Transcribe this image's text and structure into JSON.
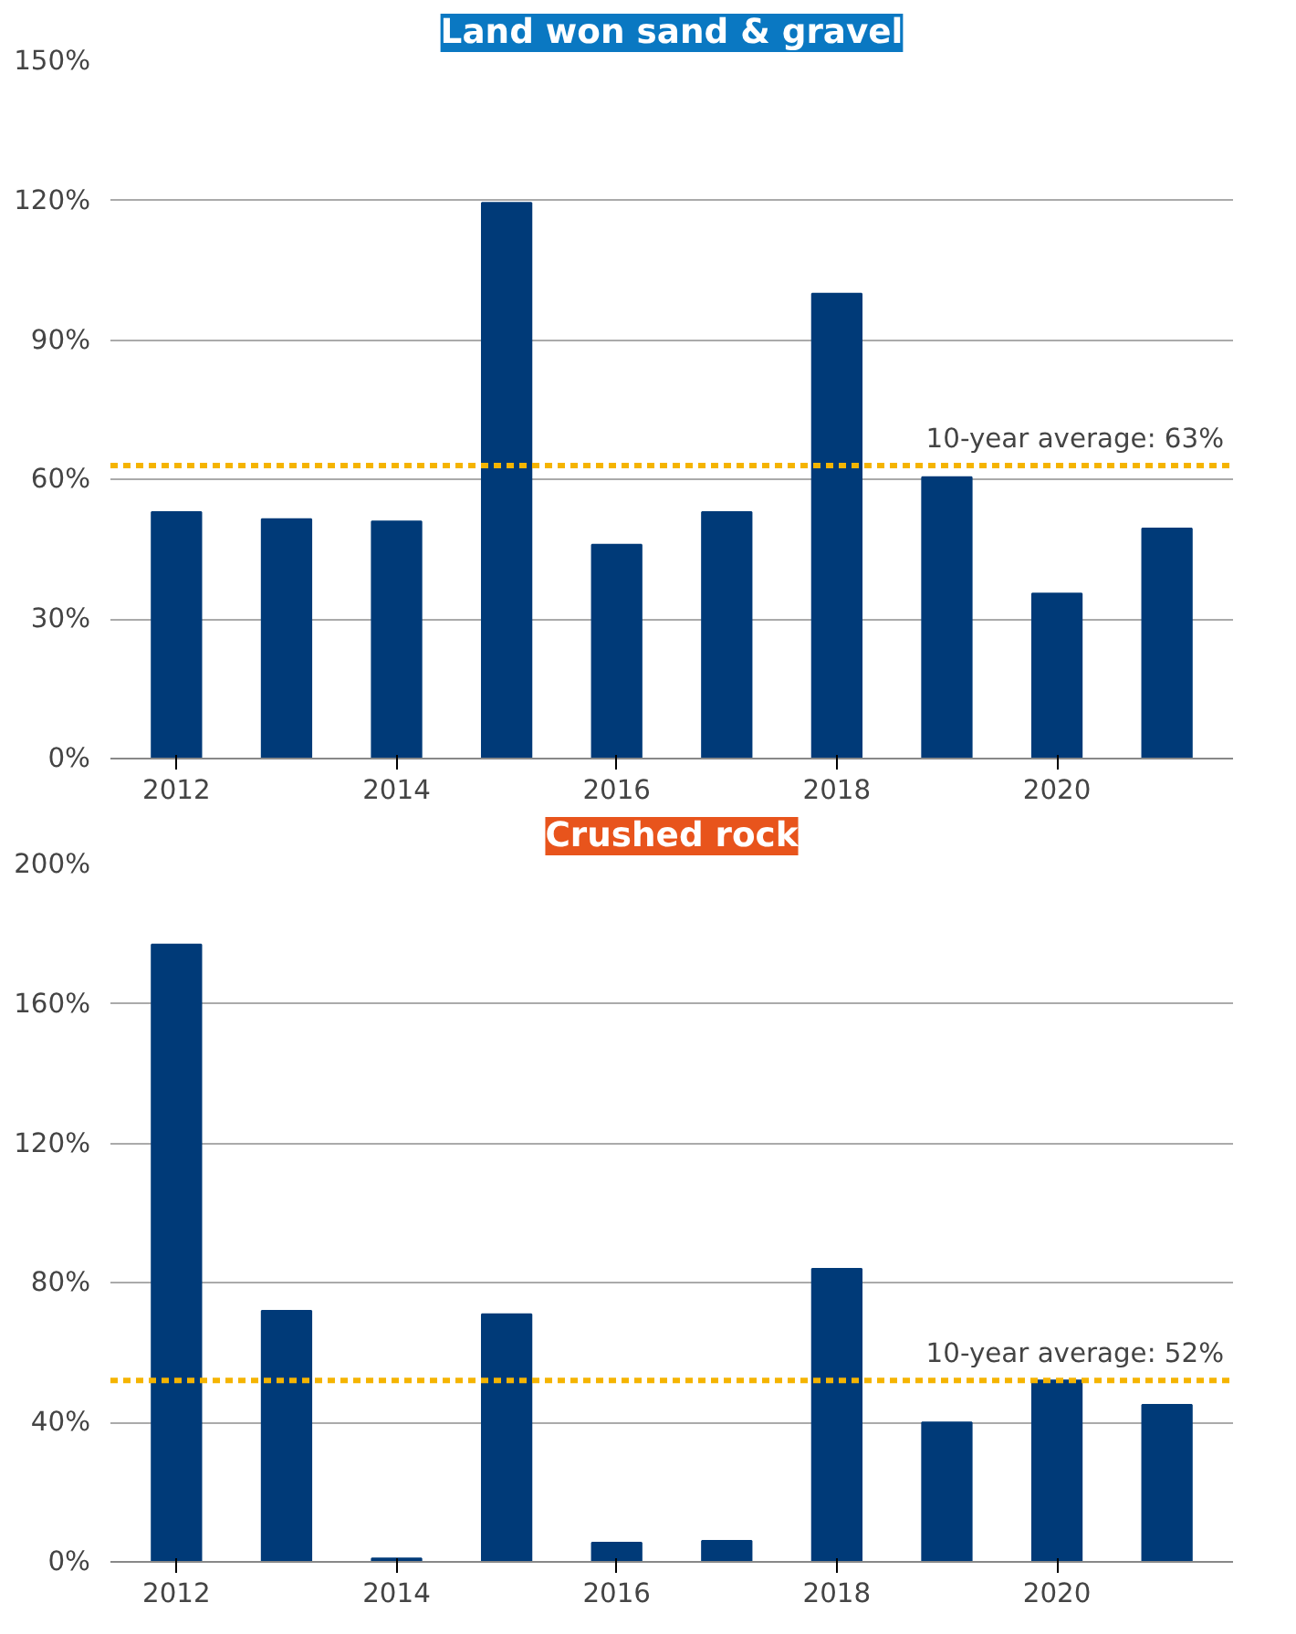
{
  "chart_data": [
    {
      "type": "bar",
      "title": "Land won sand & gravel",
      "x": [
        2012,
        2013,
        2014,
        2015,
        2016,
        2017,
        2018,
        2019,
        2020,
        2021
      ],
      "series": [
        {
          "color": "#003a78",
          "values": [
            53,
            51.5,
            51,
            119.5,
            46,
            53,
            100,
            60.5,
            35.5,
            49.5
          ]
        }
      ],
      "xlim": [
        2011.4,
        2021.6
      ],
      "xticks": [
        2012,
        2014,
        2016,
        2018,
        2020
      ],
      "ylim": [
        0,
        150
      ],
      "yticks": [
        {
          "value": 0,
          "label": "0%"
        },
        {
          "value": 30,
          "label": "30%"
        },
        {
          "value": 60,
          "label": "60%"
        },
        {
          "value": 90,
          "label": "90%"
        },
        {
          "value": 120,
          "label": "120%"
        },
        {
          "value": 150,
          "label": "150%"
        }
      ],
      "grid": "y",
      "ref_lines": [
        {
          "axis": "y",
          "value": 63,
          "label": "10-year average: 63%",
          "color": "#f5b400",
          "line_style": "dashed"
        }
      ]
    },
    {
      "type": "bar",
      "title": "Crushed rock",
      "x": [
        2012,
        2013,
        2014,
        2015,
        2016,
        2017,
        2018,
        2019,
        2020,
        2021
      ],
      "series": [
        {
          "color": "#003a78",
          "values": [
            177,
            72,
            1,
            71,
            5.5,
            6,
            84,
            40,
            52,
            45
          ]
        }
      ],
      "xlim": [
        2011.4,
        2021.6
      ],
      "xticks": [
        2012,
        2014,
        2016,
        2018,
        2020
      ],
      "ylim": [
        0,
        200
      ],
      "yticks": [
        {
          "value": 0,
          "label": "0%"
        },
        {
          "value": 40,
          "label": "40%"
        },
        {
          "value": 80,
          "label": "80%"
        },
        {
          "value": 120,
          "label": "120%"
        },
        {
          "value": 160,
          "label": "160%"
        },
        {
          "value": 200,
          "label": "200%"
        }
      ],
      "grid": "y",
      "ref_lines": [
        {
          "axis": "y",
          "value": 52,
          "label": "10-year average: 52%",
          "color": "#f5b400",
          "line_style": "dashed"
        }
      ]
    }
  ]
}
